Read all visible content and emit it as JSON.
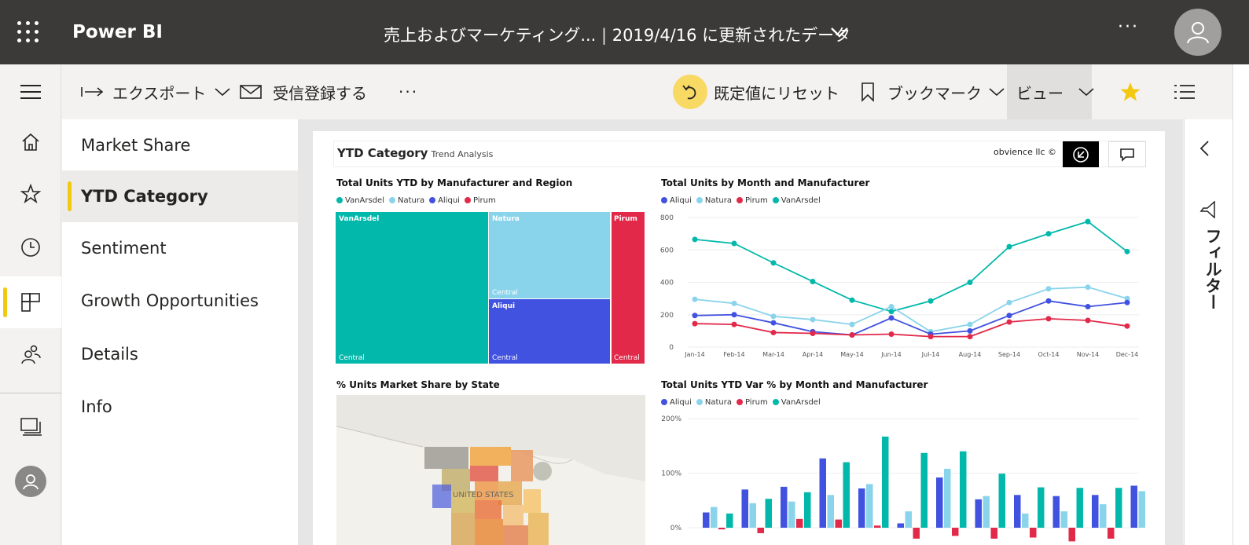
{
  "topbar": {
    "brand": "Power BI",
    "report_title": "売上およびマーケティング...",
    "separator": " | ",
    "updated": "2019/4/16 に更新されたデータ",
    "more": "···"
  },
  "actionbar": {
    "export": "エクスポート",
    "subscribe": "受信登録する",
    "more": "···",
    "reset": "既定値にリセット",
    "bookmark": "ブックマーク",
    "view": "ビュー"
  },
  "pages": [
    {
      "label": "Market Share",
      "active": false
    },
    {
      "label": "YTD Category",
      "active": true
    },
    {
      "label": "Sentiment",
      "active": false
    },
    {
      "label": "Growth Opportunities",
      "active": false
    },
    {
      "label": "Details",
      "active": false
    },
    {
      "label": "Info",
      "active": false
    }
  ],
  "filters": {
    "label": "フィルター"
  },
  "report": {
    "title": "YTD Category",
    "subtitle": "Trend Analysis",
    "credit": "obvience llc ©"
  },
  "colors": {
    "vanarsdel": "#01b8aa",
    "natura": "#8ad4eb",
    "aliqui": "#4151e0",
    "pirum": "#e2294a",
    "accent_yellow": "#f2c811"
  },
  "chart_data": [
    {
      "type": "treemap",
      "title": "Total Units YTD by Manufacturer and Region",
      "legend": [
        "VanArsdel",
        "Natura",
        "Aliqui",
        "Pirum"
      ],
      "nodes": [
        {
          "name": "VanArsdel",
          "region": "Central"
        },
        {
          "name": "Natura",
          "region": "Central"
        },
        {
          "name": "Aliqui",
          "region": "Central"
        },
        {
          "name": "Pirum",
          "region": "Central"
        }
      ]
    },
    {
      "type": "line",
      "title": "Total Units by Month and Manufacturer",
      "legend": [
        "Aliqui",
        "Natura",
        "Pirum",
        "VanArsdel"
      ],
      "categories": [
        "Jan-14",
        "Feb-14",
        "Mar-14",
        "Apr-14",
        "May-14",
        "Jun-14",
        "Jul-14",
        "Aug-14",
        "Sep-14",
        "Oct-14",
        "Nov-14",
        "Dec-14"
      ],
      "y_ticks": [
        0,
        200,
        400,
        600,
        800
      ],
      "ylim": [
        0,
        800
      ],
      "series": [
        {
          "name": "VanArsdel",
          "values": [
            665,
            640,
            520,
            405,
            290,
            220,
            285,
            400,
            620,
            700,
            775,
            590
          ]
        },
        {
          "name": "Natura",
          "values": [
            295,
            270,
            190,
            170,
            140,
            250,
            95,
            140,
            275,
            360,
            370,
            300
          ]
        },
        {
          "name": "Aliqui",
          "values": [
            195,
            200,
            150,
            95,
            75,
            180,
            80,
            100,
            195,
            285,
            250,
            275
          ]
        },
        {
          "name": "Pirum",
          "values": [
            145,
            140,
            90,
            85,
            75,
            80,
            65,
            65,
            155,
            175,
            165,
            130
          ]
        }
      ]
    },
    {
      "type": "map",
      "title": "% Units Market Share by State",
      "map_label": "UNITED STATES"
    },
    {
      "type": "bar",
      "title": "Total Units YTD Var % by Month and Manufacturer",
      "legend": [
        "Aliqui",
        "Natura",
        "Pirum",
        "VanArsdel"
      ],
      "y_ticks": [
        "200%",
        "100%",
        "0%"
      ],
      "ylim": [
        0,
        200
      ],
      "series": [
        {
          "name": "Aliqui",
          "values": [
            28,
            70,
            75,
            127,
            72,
            8,
            92,
            52,
            60,
            58,
            60,
            77
          ]
        },
        {
          "name": "Natura",
          "values": [
            38,
            45,
            48,
            60,
            80,
            30,
            108,
            58,
            26,
            30,
            43,
            67
          ]
        },
        {
          "name": "Pirum",
          "values": [
            -3,
            -10,
            16,
            15,
            4,
            -20,
            -15,
            -20,
            -18,
            -25,
            -20,
            -25
          ]
        },
        {
          "name": "VanArsdel",
          "values": [
            26,
            53,
            65,
            120,
            167,
            137,
            140,
            99,
            74,
            73,
            73,
            46
          ]
        }
      ]
    }
  ]
}
